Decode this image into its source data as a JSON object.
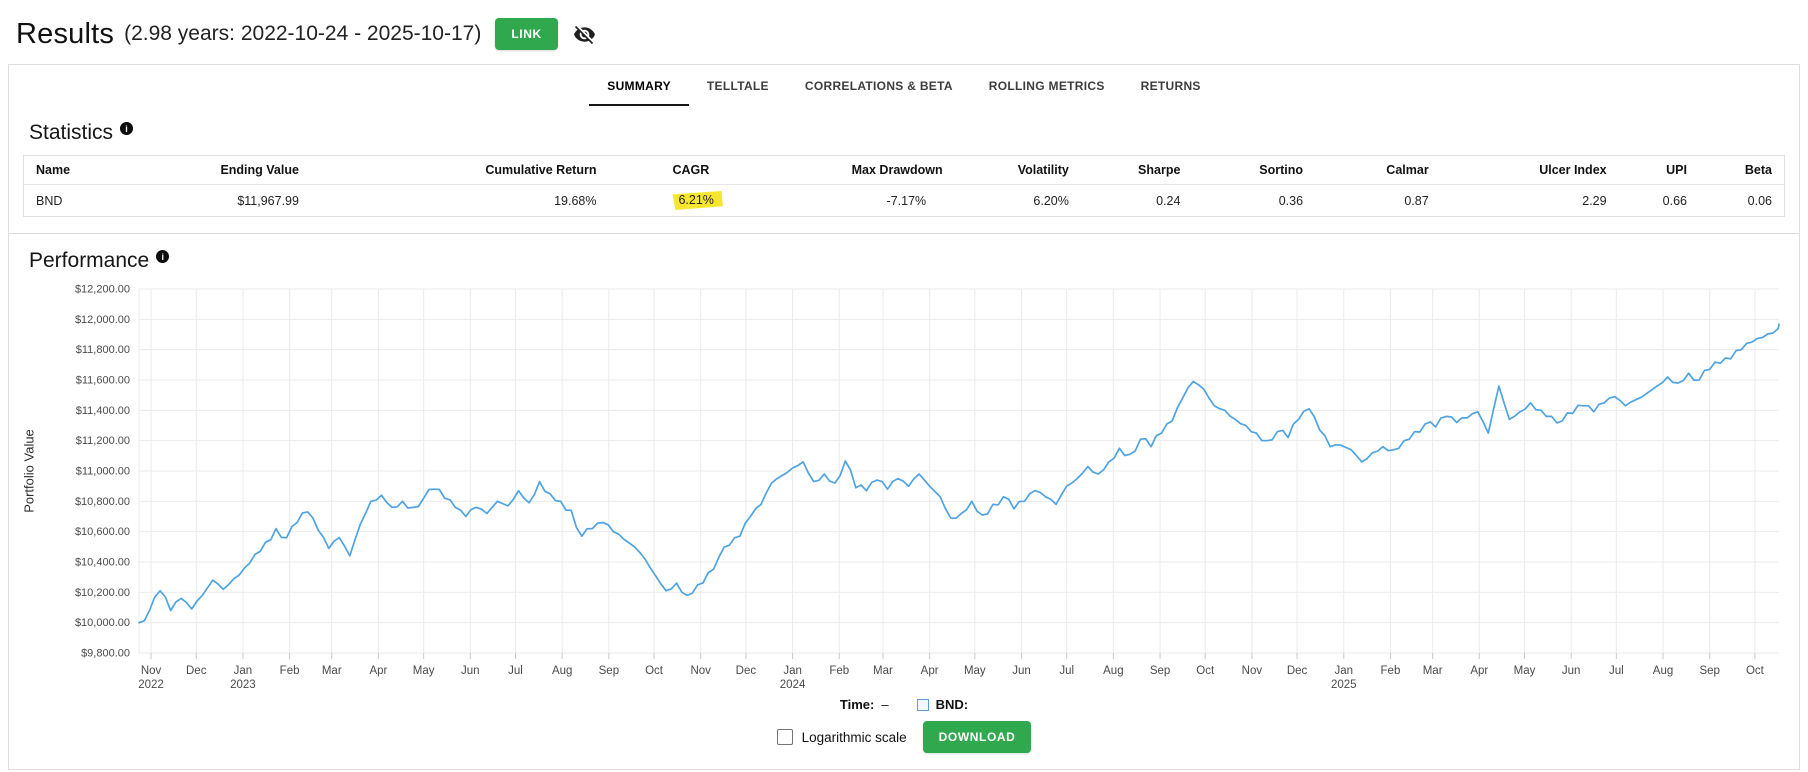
{
  "header": {
    "title": "Results",
    "subtitle": "(2.98 years: 2022-10-24 - 2025-10-17)",
    "link_button": "LINK"
  },
  "icons": {
    "info": "i"
  },
  "tabs": [
    {
      "label": "SUMMARY",
      "active": true
    },
    {
      "label": "TELLTALE",
      "active": false
    },
    {
      "label": "CORRELATIONS & BETA",
      "active": false
    },
    {
      "label": "ROLLING METRICS",
      "active": false
    },
    {
      "label": "RETURNS",
      "active": false
    }
  ],
  "statistics": {
    "title": "Statistics",
    "columns": [
      {
        "label": "Name"
      },
      {
        "label": "Ending Value"
      },
      {
        "label": "Cumulative Return"
      },
      {
        "label": "CAGR"
      },
      {
        "label": "Max Drawdown"
      },
      {
        "label": "Volatility"
      },
      {
        "label": "Sharpe"
      },
      {
        "label": "Sortino"
      },
      {
        "label": "Calmar"
      },
      {
        "label": "Ulcer Index"
      },
      {
        "label": "UPI"
      },
      {
        "label": "Beta"
      }
    ],
    "rows": [
      {
        "name": "BND",
        "ending_value": "$11,967.99",
        "cumulative_return": "19.68%",
        "cagr": "6.21%",
        "cagr_highlighted": true,
        "max_drawdown": "-7.17%",
        "volatility": "6.20%",
        "sharpe": "0.24",
        "sortino": "0.36",
        "calmar": "0.87",
        "ulcer_index": "2.29",
        "upi": "0.66",
        "beta": "0.06"
      }
    ]
  },
  "performance": {
    "title": "Performance",
    "ylabel": "Portfolio Value"
  },
  "chart_data": {
    "type": "line",
    "title": "Performance",
    "series_name": "BND",
    "xlabel": "",
    "ylabel": "Portfolio Value",
    "ylim": [
      9800,
      12200
    ],
    "y_tick_step": 200,
    "y_tick_labels": [
      "$9,800.00",
      "$10,000.00",
      "$10,200.00",
      "$10,400.00",
      "$10,600.00",
      "$10,800.00",
      "$11,000.00",
      "$11,200.00",
      "$11,400.00",
      "$11,600.00",
      "$11,800.00",
      "$12,000.00",
      "$12,200.00"
    ],
    "x_ticks": [
      [
        "Nov",
        "2022"
      ],
      [
        "Dec",
        ""
      ],
      [
        "Jan",
        "2023"
      ],
      [
        "Feb",
        ""
      ],
      [
        "Mar",
        ""
      ],
      [
        "Apr",
        ""
      ],
      [
        "May",
        ""
      ],
      [
        "Jun",
        ""
      ],
      [
        "Jul",
        ""
      ],
      [
        "Aug",
        ""
      ],
      [
        "Sep",
        ""
      ],
      [
        "Oct",
        ""
      ],
      [
        "Nov",
        ""
      ],
      [
        "Dec",
        ""
      ],
      [
        "Jan",
        "2024"
      ],
      [
        "Feb",
        ""
      ],
      [
        "Mar",
        ""
      ],
      [
        "Apr",
        ""
      ],
      [
        "May",
        ""
      ],
      [
        "Jun",
        ""
      ],
      [
        "Jul",
        ""
      ],
      [
        "Aug",
        ""
      ],
      [
        "Sep",
        ""
      ],
      [
        "Oct",
        ""
      ],
      [
        "Nov",
        ""
      ],
      [
        "Dec",
        ""
      ],
      [
        "Jan",
        "2025"
      ],
      [
        "Feb",
        ""
      ],
      [
        "Mar",
        ""
      ],
      [
        "Apr",
        ""
      ],
      [
        "May",
        ""
      ],
      [
        "Jun",
        ""
      ],
      [
        "Jul",
        ""
      ],
      [
        "Aug",
        ""
      ],
      [
        "Sep",
        ""
      ],
      [
        "Oct",
        ""
      ]
    ],
    "grid": true,
    "legend_position": "bottom",
    "start_date": "2022-10-24",
    "end_date": "2025-10-17",
    "interval_days": 7,
    "values": [
      10000,
      10080,
      10210,
      10080,
      10160,
      10090,
      10180,
      10280,
      10220,
      10290,
      10360,
      10450,
      10530,
      10620,
      10560,
      10660,
      10730,
      10610,
      10490,
      10560,
      10440,
      10650,
      10800,
      10840,
      10760,
      10800,
      10760,
      10820,
      10880,
      10820,
      10760,
      10700,
      10760,
      10720,
      10800,
      10770,
      10870,
      10790,
      10930,
      10850,
      10800,
      10740,
      10570,
      10620,
      10660,
      10600,
      10550,
      10500,
      10420,
      10310,
      10210,
      10260,
      10180,
      10250,
      10330,
      10430,
      10510,
      10570,
      10700,
      10780,
      10920,
      10970,
      11020,
      11060,
      10930,
      10980,
      10920,
      11065,
      10890,
      10870,
      10940,
      10880,
      10950,
      10900,
      10980,
      10900,
      10830,
      10690,
      10720,
      10800,
      10710,
      10780,
      10830,
      10750,
      10800,
      10870,
      10830,
      10780,
      10900,
      10950,
      11030,
      10980,
      11060,
      11150,
      11110,
      11210,
      11160,
      11250,
      11330,
      11480,
      11590,
      11540,
      11430,
      11400,
      11340,
      11300,
      11250,
      11200,
      11260,
      11220,
      11340,
      11410,
      11270,
      11160,
      11170,
      11140,
      11060,
      11120,
      11160,
      11140,
      11200,
      11260,
      11310,
      11290,
      11360,
      11320,
      11350,
      11390,
      11250,
      11560,
      11340,
      11390,
      11450,
      11400,
      11360,
      11330,
      11380,
      11430,
      11390,
      11450,
      11490,
      11430,
      11470,
      11510,
      11560,
      11620,
      11580,
      11645,
      11600,
      11670,
      11710,
      11740,
      11800,
      11850,
      11880,
      11910,
      11967.99
    ]
  },
  "footer": {
    "time_label": "Time:",
    "time_value": "–",
    "series_label": "BND:",
    "log_checkbox_label": "Logarithmic scale",
    "download_button": "DOWNLOAD"
  },
  "colors": {
    "accent_green": "#2fa84e",
    "line_blue": "#4FA3E3",
    "highlight_yellow": "#f6e72e",
    "grid_gray": "#ebebeb"
  }
}
